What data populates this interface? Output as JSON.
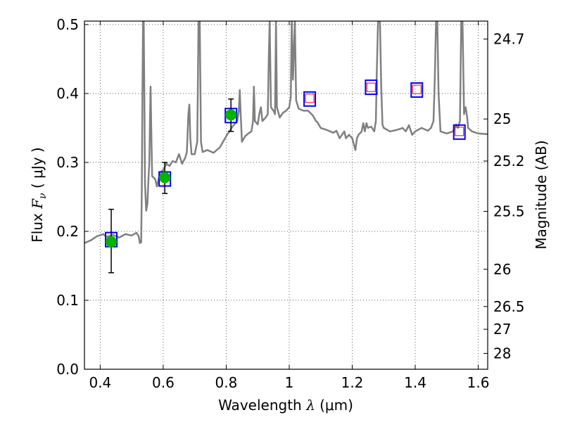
{
  "chart_data": {
    "type": "line",
    "title": "",
    "xlabel_text": "Wavelength",
    "xlabel_symbol": "λ",
    "xlabel_unit": "(μm)",
    "ylabel_text": "Flux",
    "ylabel_symbol": "F",
    "ylabel_subscript": "ν",
    "ylabel_unit": "( μJy )",
    "y2label": "Magnitude (AB)",
    "xlim": [
      0.35,
      1.63
    ],
    "ylim": [
      0.0,
      0.505
    ],
    "grid": true,
    "grid_style": "dotted",
    "xticks": [
      0.4,
      0.6,
      0.8,
      1.0,
      1.2,
      1.4,
      1.6
    ],
    "xtick_labels": [
      "0.4",
      "0.6",
      "0.8",
      "1",
      "1.2",
      "1.4",
      "1.6"
    ],
    "yticks": [
      0.0,
      0.1,
      0.2,
      0.3,
      0.4,
      0.5
    ],
    "ytick_labels": [
      "0.0",
      "0.1",
      "0.2",
      "0.3",
      "0.4",
      "0.5"
    ],
    "y2ticks": [
      {
        "label": "24.7",
        "flux": 0.479
      },
      {
        "label": "25",
        "flux": 0.363
      },
      {
        "label": "25.2",
        "flux": 0.302
      },
      {
        "label": "25.5",
        "flux": 0.229
      },
      {
        "label": "26",
        "flux": 0.145
      },
      {
        "label": "26.5",
        "flux": 0.091
      },
      {
        "label": "27",
        "flux": 0.058
      },
      {
        "label": "28",
        "flux": 0.023
      }
    ],
    "series": [
      {
        "kind": "spectrum",
        "color": "#808080",
        "linewidth": 2.5,
        "points": [
          [
            0.35,
            0.183
          ],
          [
            0.37,
            0.187
          ],
          [
            0.39,
            0.193
          ],
          [
            0.41,
            0.196
          ],
          [
            0.42,
            0.192
          ],
          [
            0.44,
            0.195
          ],
          [
            0.46,
            0.191
          ],
          [
            0.48,
            0.196
          ],
          [
            0.5,
            0.194
          ],
          [
            0.515,
            0.198
          ],
          [
            0.522,
            0.193
          ],
          [
            0.526,
            0.183
          ],
          [
            0.53,
            0.184
          ],
          [
            0.532,
            0.26
          ],
          [
            0.534,
            0.4
          ],
          [
            0.536,
            0.505
          ],
          [
            0.538,
            0.505
          ],
          [
            0.54,
            0.4
          ],
          [
            0.542,
            0.27
          ],
          [
            0.546,
            0.23
          ],
          [
            0.55,
            0.24
          ],
          [
            0.553,
            0.275
          ],
          [
            0.556,
            0.3
          ],
          [
            0.558,
            0.36
          ],
          [
            0.56,
            0.41
          ],
          [
            0.562,
            0.35
          ],
          [
            0.565,
            0.28
          ],
          [
            0.57,
            0.278
          ],
          [
            0.575,
            0.275
          ],
          [
            0.58,
            0.265
          ],
          [
            0.59,
            0.285
          ],
          [
            0.6,
            0.289
          ],
          [
            0.61,
            0.298
          ],
          [
            0.62,
            0.295
          ],
          [
            0.63,
            0.302
          ],
          [
            0.64,
            0.3
          ],
          [
            0.645,
            0.306
          ],
          [
            0.65,
            0.312
          ],
          [
            0.66,
            0.298
          ],
          [
            0.67,
            0.307
          ],
          [
            0.675,
            0.315
          ],
          [
            0.68,
            0.37
          ],
          [
            0.683,
            0.384
          ],
          [
            0.686,
            0.335
          ],
          [
            0.69,
            0.312
          ],
          [
            0.7,
            0.312
          ],
          [
            0.708,
            0.33
          ],
          [
            0.712,
            0.505
          ],
          [
            0.716,
            0.505
          ],
          [
            0.72,
            0.33
          ],
          [
            0.725,
            0.315
          ],
          [
            0.74,
            0.318
          ],
          [
            0.76,
            0.314
          ],
          [
            0.78,
            0.322
          ],
          [
            0.79,
            0.33
          ],
          [
            0.8,
            0.338
          ],
          [
            0.81,
            0.345
          ],
          [
            0.82,
            0.352
          ],
          [
            0.835,
            0.36
          ],
          [
            0.84,
            0.375
          ],
          [
            0.843,
            0.405
          ],
          [
            0.846,
            0.37
          ],
          [
            0.85,
            0.33
          ],
          [
            0.86,
            0.338
          ],
          [
            0.87,
            0.342
          ],
          [
            0.88,
            0.345
          ],
          [
            0.885,
            0.36
          ],
          [
            0.888,
            0.41
          ],
          [
            0.891,
            0.36
          ],
          [
            0.9,
            0.355
          ],
          [
            0.905,
            0.37
          ],
          [
            0.91,
            0.38
          ],
          [
            0.915,
            0.36
          ],
          [
            0.925,
            0.365
          ],
          [
            0.932,
            0.37
          ],
          [
            0.935,
            0.45
          ],
          [
            0.938,
            0.505
          ],
          [
            0.942,
            0.38
          ],
          [
            0.95,
            0.375
          ],
          [
            0.955,
            0.37
          ],
          [
            0.958,
            0.505
          ],
          [
            0.961,
            0.38
          ],
          [
            0.97,
            0.365
          ],
          [
            0.98,
            0.372
          ],
          [
            0.99,
            0.375
          ],
          [
            1.0,
            0.38
          ],
          [
            1.005,
            0.395
          ],
          [
            1.008,
            0.505
          ],
          [
            1.012,
            0.42
          ],
          [
            1.018,
            0.505
          ],
          [
            1.022,
            0.39
          ],
          [
            1.03,
            0.378
          ],
          [
            1.045,
            0.375
          ],
          [
            1.06,
            0.375
          ],
          [
            1.075,
            0.368
          ],
          [
            1.085,
            0.36
          ],
          [
            1.09,
            0.358
          ],
          [
            1.1,
            0.35
          ],
          [
            1.12,
            0.347
          ],
          [
            1.14,
            0.343
          ],
          [
            1.15,
            0.346
          ],
          [
            1.16,
            0.335
          ],
          [
            1.175,
            0.345
          ],
          [
            1.18,
            0.335
          ],
          [
            1.19,
            0.34
          ],
          [
            1.2,
            0.335
          ],
          [
            1.21,
            0.318
          ],
          [
            1.215,
            0.335
          ],
          [
            1.22,
            0.34
          ],
          [
            1.23,
            0.345
          ],
          [
            1.235,
            0.357
          ],
          [
            1.24,
            0.345
          ],
          [
            1.245,
            0.357
          ],
          [
            1.25,
            0.35
          ],
          [
            1.26,
            0.352
          ],
          [
            1.27,
            0.345
          ],
          [
            1.275,
            0.36
          ],
          [
            1.278,
            0.43
          ],
          [
            1.282,
            0.505
          ],
          [
            1.288,
            0.505
          ],
          [
            1.292,
            0.41
          ],
          [
            1.296,
            0.355
          ],
          [
            1.3,
            0.35
          ],
          [
            1.32,
            0.345
          ],
          [
            1.34,
            0.347
          ],
          [
            1.36,
            0.35
          ],
          [
            1.37,
            0.345
          ],
          [
            1.38,
            0.354
          ],
          [
            1.39,
            0.34
          ],
          [
            1.4,
            0.345
          ],
          [
            1.42,
            0.35
          ],
          [
            1.44,
            0.346
          ],
          [
            1.45,
            0.35
          ],
          [
            1.458,
            0.36
          ],
          [
            1.462,
            0.42
          ],
          [
            1.466,
            0.505
          ],
          [
            1.47,
            0.505
          ],
          [
            1.474,
            0.4
          ],
          [
            1.48,
            0.345
          ],
          [
            1.5,
            0.342
          ],
          [
            1.52,
            0.345
          ],
          [
            1.53,
            0.355
          ],
          [
            1.535,
            0.35
          ],
          [
            1.542,
            0.36
          ],
          [
            1.546,
            0.505
          ],
          [
            1.55,
            0.505
          ],
          [
            1.555,
            0.37
          ],
          [
            1.56,
            0.38
          ],
          [
            1.565,
            0.365
          ],
          [
            1.568,
            0.35
          ],
          [
            1.58,
            0.345
          ],
          [
            1.6,
            0.342
          ],
          [
            1.63,
            0.341
          ]
        ]
      }
    ],
    "photometry_boxes": [
      {
        "x": 0.435,
        "y": 0.188,
        "edge_color": "#0000ff"
      },
      {
        "x": 0.605,
        "y": 0.276,
        "edge_color": "#0000ff"
      },
      {
        "x": 0.815,
        "y": 0.368,
        "edge_color": "#0000ff"
      },
      {
        "x": 1.065,
        "y": 0.392,
        "edge_color": "#0000ff"
      },
      {
        "x": 1.26,
        "y": 0.409,
        "edge_color": "#0000ff"
      },
      {
        "x": 1.405,
        "y": 0.405,
        "edge_color": "#0000ff"
      },
      {
        "x": 1.54,
        "y": 0.344,
        "edge_color": "#0000ff"
      }
    ],
    "measured_points": [
      {
        "x": 0.435,
        "y": 0.185,
        "yerr_low": 0.14,
        "yerr_high": 0.232,
        "color": "#00b400"
      },
      {
        "x": 0.605,
        "y": 0.278,
        "yerr_low": 0.255,
        "yerr_high": 0.3,
        "color": "#00b400"
      },
      {
        "x": 0.815,
        "y": 0.369,
        "yerr_low": 0.345,
        "yerr_high": 0.392,
        "color": "#00b400"
      }
    ],
    "open_markers": [
      {
        "x": 1.065,
        "y": 0.393,
        "color": "#ff0000"
      },
      {
        "x": 1.26,
        "y": 0.409,
        "color": "#ff0000"
      },
      {
        "x": 1.405,
        "y": 0.406,
        "color": "#ff0000"
      },
      {
        "x": 1.54,
        "y": 0.345,
        "color": "#ff0000"
      }
    ]
  }
}
